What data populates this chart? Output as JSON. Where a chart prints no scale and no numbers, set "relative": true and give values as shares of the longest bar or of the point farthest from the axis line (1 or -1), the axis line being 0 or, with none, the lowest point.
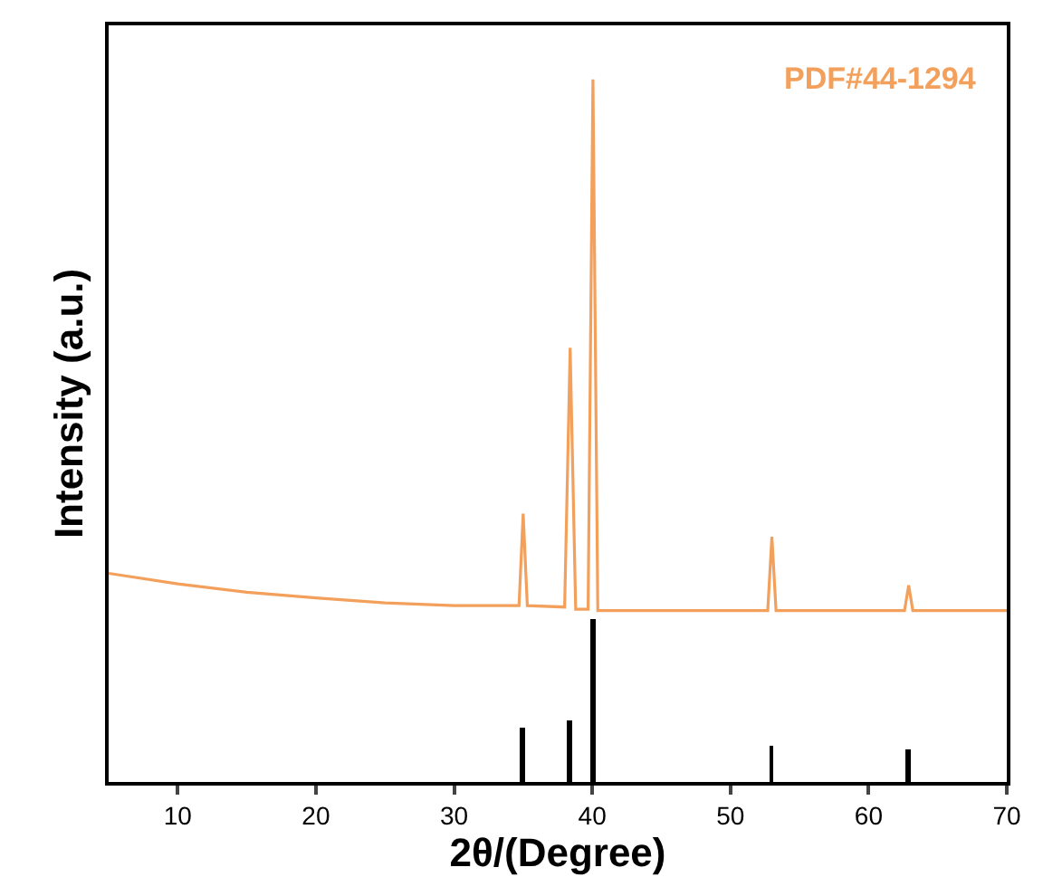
{
  "chart_data": {
    "type": "line",
    "relative": true,
    "xlabel": "2θ/(Degree)",
    "ylabel": "Intensity (a.u.)",
    "xlim": [
      5,
      70
    ],
    "xticks": [
      10,
      20,
      30,
      40,
      50,
      60,
      70
    ],
    "tick_labels": "x",
    "marker": "none",
    "line_style": "solid",
    "annotations": [
      "PDF#44-1294"
    ],
    "series": [
      {
        "color": "#f2a05c",
        "x": [
          5,
          10,
          15,
          20,
          25,
          30,
          34.7,
          35.0,
          35.3,
          38.0,
          38.4,
          38.8,
          39.7,
          40.05,
          40.4,
          45,
          52.7,
          53.0,
          53.3,
          62.6,
          62.9,
          63.2,
          70
        ],
        "values": [
          0.297,
          0.282,
          0.27,
          0.262,
          0.255,
          0.251,
          0.251,
          0.382,
          0.251,
          0.249,
          0.618,
          0.246,
          0.246,
          1.0,
          0.244,
          0.244,
          0.244,
          0.349,
          0.244,
          0.244,
          0.28,
          0.244,
          0.244
        ]
      },
      {
        "type": "bar",
        "color": "#000000",
        "x": [
          35.0,
          38.4,
          40.1,
          53.0,
          62.9
        ],
        "values": [
          0.077,
          0.087,
          0.233,
          0.051,
          0.046
        ]
      }
    ]
  }
}
